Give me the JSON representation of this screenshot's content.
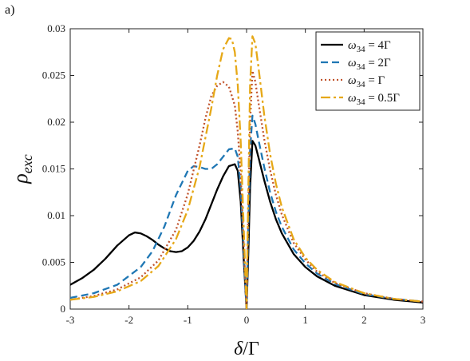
{
  "panel_label": "a)",
  "chart_data": {
    "type": "line",
    "xlabel_main": "δ",
    "xlabel_unit": "/Γ",
    "ylabel_main": "ρ",
    "ylabel_sub": "exc",
    "xlim": [
      -3,
      3
    ],
    "ylim": [
      0,
      0.03
    ],
    "x_ticks": [
      -3,
      -2,
      -1,
      0,
      1,
      2,
      3
    ],
    "x_tick_labels": [
      "-3",
      "-2",
      "-1",
      "0",
      "1",
      "2",
      "3"
    ],
    "y_ticks": [
      0,
      0.005,
      0.01,
      0.015,
      0.02,
      0.025,
      0.03
    ],
    "y_tick_labels": [
      "0",
      "0.005",
      "0.01",
      "0.015",
      "0.02",
      "0.025",
      "0.03"
    ],
    "grid": false,
    "legend_position": "top-right",
    "series": [
      {
        "name": "ω34 = 4Γ",
        "legend_symbol": "ω",
        "legend_sub": "34",
        "legend_rest": " = 4Γ",
        "color": "#000000",
        "style": "solid",
        "x": [
          -3.0,
          -2.8,
          -2.6,
          -2.4,
          -2.2,
          -2.0,
          -1.9,
          -1.8,
          -1.7,
          -1.6,
          -1.5,
          -1.4,
          -1.3,
          -1.2,
          -1.1,
          -1.0,
          -0.9,
          -0.8,
          -0.7,
          -0.6,
          -0.5,
          -0.4,
          -0.3,
          -0.2,
          -0.15,
          -0.1,
          -0.05,
          0.0,
          0.03,
          0.06,
          0.1,
          0.15,
          0.2,
          0.3,
          0.4,
          0.5,
          0.6,
          0.8,
          1.0,
          1.2,
          1.5,
          2.0,
          2.5,
          3.0
        ],
        "y": [
          0.0026,
          0.0033,
          0.0042,
          0.0054,
          0.0068,
          0.0079,
          0.0082,
          0.0081,
          0.0078,
          0.0074,
          0.0069,
          0.0065,
          0.0062,
          0.0061,
          0.0062,
          0.0066,
          0.0073,
          0.0083,
          0.0096,
          0.0112,
          0.0128,
          0.0142,
          0.0153,
          0.0155,
          0.0148,
          0.0115,
          0.0055,
          0.0,
          0.006,
          0.013,
          0.018,
          0.0175,
          0.0163,
          0.0138,
          0.0115,
          0.0096,
          0.0081,
          0.0059,
          0.0045,
          0.0035,
          0.0025,
          0.0015,
          0.001,
          0.0007
        ]
      },
      {
        "name": "ω34 = 2Γ",
        "legend_symbol": "ω",
        "legend_sub": "34",
        "legend_rest": " = 2Γ",
        "color": "#1f77b4",
        "style": "dashed",
        "x": [
          -3.0,
          -2.6,
          -2.2,
          -1.8,
          -1.6,
          -1.4,
          -1.2,
          -1.0,
          -0.9,
          -0.8,
          -0.7,
          -0.6,
          -0.5,
          -0.4,
          -0.3,
          -0.2,
          -0.15,
          -0.1,
          -0.05,
          0.0,
          0.03,
          0.06,
          0.1,
          0.15,
          0.2,
          0.3,
          0.4,
          0.5,
          0.6,
          0.8,
          1.0,
          1.2,
          1.5,
          2.0,
          2.5,
          3.0
        ],
        "y": [
          0.0012,
          0.0017,
          0.0026,
          0.0045,
          0.0062,
          0.0088,
          0.0122,
          0.0148,
          0.0153,
          0.0152,
          0.015,
          0.015,
          0.0155,
          0.0163,
          0.0171,
          0.0172,
          0.0163,
          0.013,
          0.0065,
          0.0,
          0.009,
          0.017,
          0.0207,
          0.0198,
          0.0182,
          0.0152,
          0.0125,
          0.0104,
          0.0088,
          0.0064,
          0.0049,
          0.0038,
          0.0027,
          0.0016,
          0.0011,
          0.0008
        ]
      },
      {
        "name": "ω34 = Γ",
        "legend_symbol": "ω",
        "legend_sub": "34",
        "legend_rest": " = Γ",
        "color": "#c0522b",
        "style": "dotted",
        "x": [
          -3.0,
          -2.6,
          -2.2,
          -1.8,
          -1.5,
          -1.2,
          -1.0,
          -0.8,
          -0.7,
          -0.6,
          -0.5,
          -0.4,
          -0.3,
          -0.2,
          -0.15,
          -0.1,
          -0.05,
          0.0,
          0.03,
          0.06,
          0.1,
          0.15,
          0.2,
          0.3,
          0.4,
          0.5,
          0.6,
          0.8,
          1.0,
          1.2,
          1.5,
          2.0,
          2.5,
          3.0
        ],
        "y": [
          0.001,
          0.0014,
          0.0021,
          0.0034,
          0.0052,
          0.0085,
          0.0123,
          0.0175,
          0.0204,
          0.0228,
          0.0239,
          0.0243,
          0.0238,
          0.0218,
          0.019,
          0.0145,
          0.007,
          0.0,
          0.011,
          0.02,
          0.0255,
          0.0243,
          0.0222,
          0.0182,
          0.0149,
          0.0122,
          0.0101,
          0.0071,
          0.0053,
          0.004,
          0.0028,
          0.0017,
          0.0011,
          0.0008
        ]
      },
      {
        "name": "ω34 = 0.5Γ",
        "legend_symbol": "ω",
        "legend_sub": "34",
        "legend_rest": " = 0.5Γ",
        "color": "#e6a817",
        "style": "dashdot",
        "x": [
          -3.0,
          -2.6,
          -2.2,
          -1.8,
          -1.5,
          -1.2,
          -1.0,
          -0.8,
          -0.6,
          -0.5,
          -0.4,
          -0.3,
          -0.25,
          -0.2,
          -0.15,
          -0.1,
          -0.05,
          0.0,
          0.03,
          0.06,
          0.1,
          0.15,
          0.2,
          0.3,
          0.4,
          0.5,
          0.6,
          0.8,
          1.0,
          1.2,
          1.5,
          2.0,
          2.5,
          3.0
        ],
        "y": [
          0.001,
          0.0013,
          0.0019,
          0.003,
          0.0046,
          0.0075,
          0.0106,
          0.0152,
          0.0215,
          0.025,
          0.0278,
          0.029,
          0.0289,
          0.0275,
          0.024,
          0.018,
          0.009,
          0.0,
          0.013,
          0.024,
          0.0292,
          0.0284,
          0.026,
          0.0208,
          0.0166,
          0.0134,
          0.0109,
          0.0075,
          0.0055,
          0.0042,
          0.0029,
          0.0017,
          0.0011,
          0.0008
        ]
      }
    ]
  }
}
